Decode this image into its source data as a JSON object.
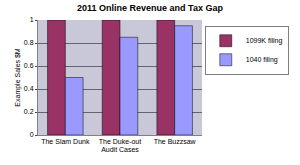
{
  "chart_data": {
    "type": "bar",
    "title": "2011 Online Revenue and Tax Gap",
    "x_label": "Audit Cases",
    "y_label": "Example Sales $M",
    "categories": [
      "The Slam Dunk",
      "The Duke-out",
      "The Buzzsaw"
    ],
    "series": [
      {
        "name": "1099K filing",
        "color": "#993366",
        "values": [
          1,
          1,
          1
        ]
      },
      {
        "name": "1040 filing",
        "color": "#9999FF",
        "values": [
          0.5,
          0.85,
          0.95
        ]
      }
    ],
    "ylim": [
      0,
      1
    ],
    "yticks": [
      0,
      0.2,
      0.4,
      0.6,
      0.8,
      1
    ],
    "grid": true,
    "legend": "right"
  }
}
